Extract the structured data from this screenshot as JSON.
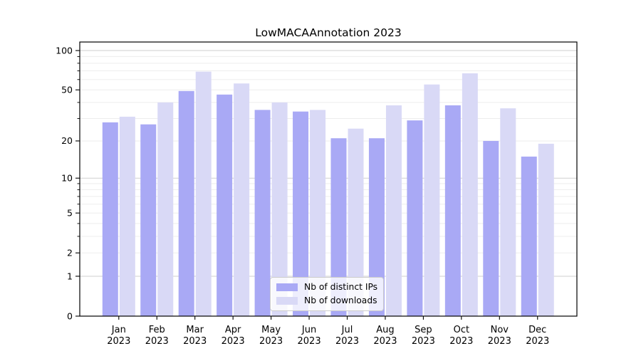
{
  "chart_data": {
    "type": "bar",
    "title": "LowMACAAnnotation 2023",
    "categories": [
      "Jan",
      "Feb",
      "Mar",
      "Apr",
      "May",
      "Jun",
      "Jul",
      "Aug",
      "Sep",
      "Oct",
      "Nov",
      "Dec"
    ],
    "year_label": "2023",
    "series": [
      {
        "name": "Nb of distinct IPs",
        "color": "#a9a9f5",
        "values": [
          28,
          27,
          49,
          46,
          35,
          34,
          21,
          21,
          29,
          38,
          20,
          15
        ]
      },
      {
        "name": "Nb of downloads",
        "color": "#d9d9f6",
        "values": [
          31,
          40,
          69,
          56,
          40,
          35,
          25,
          38,
          55,
          67,
          36,
          19
        ]
      }
    ],
    "yticks": [
      0,
      1,
      2,
      5,
      10,
      20,
      50,
      100
    ],
    "yscale": "log1p",
    "ylim": [
      0,
      115
    ],
    "grid": true,
    "legend_position": "lower center"
  }
}
